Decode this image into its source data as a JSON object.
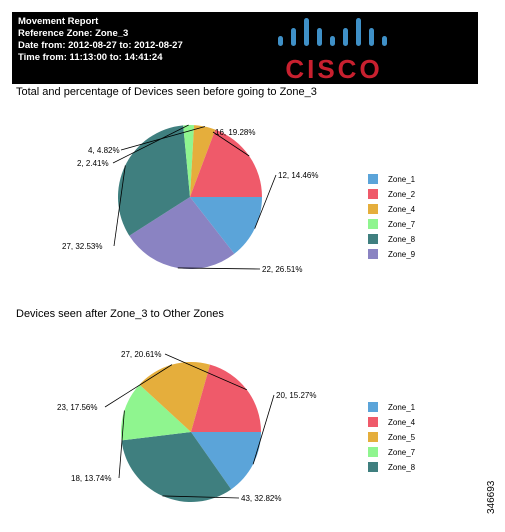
{
  "header": {
    "lines": [
      "Movement Report",
      "Reference Zone: Zone_3",
      "Date from: 2012-08-27 to: 2012-08-27",
      "Time from: 11:13:00 to: 14:41:24"
    ],
    "logo_text": "CISCO",
    "logo_color": "#c8202f"
  },
  "side_id": "346693",
  "chart_data": [
    {
      "type": "pie",
      "title": "Total and percentage of Devices seen before going to Zone_3",
      "legend_position": "right",
      "slices": [
        {
          "name": "Zone_1",
          "value": 12,
          "percent": 14.46,
          "label": "12, 14.46%",
          "color": "#5ba4d9"
        },
        {
          "name": "Zone_9",
          "value": 22,
          "percent": 26.51,
          "label": "22, 26.51%",
          "color": "#8a83c2"
        },
        {
          "name": "Zone_8",
          "value": 27,
          "percent": 32.53,
          "label": "27, 32.53%",
          "color": "#3f7f7f"
        },
        {
          "name": "Zone_7",
          "value": 2,
          "percent": 2.41,
          "label": "2, 2.41%",
          "color": "#8ff58f"
        },
        {
          "name": "Zone_4",
          "value": 4,
          "percent": 4.82,
          "label": "4, 4.82%",
          "color": "#e5ae3c"
        },
        {
          "name": "Zone_2",
          "value": 16,
          "percent": 19.28,
          "label": "16, 19.28%",
          "color": "#ef5a6a"
        }
      ],
      "legend": [
        {
          "name": "Zone_1",
          "color": "#5ba4d9"
        },
        {
          "name": "Zone_2",
          "color": "#ef5a6a"
        },
        {
          "name": "Zone_4",
          "color": "#e5ae3c"
        },
        {
          "name": "Zone_7",
          "color": "#8ff58f"
        },
        {
          "name": "Zone_8",
          "color": "#3f7f7f"
        },
        {
          "name": "Zone_9",
          "color": "#8a83c2"
        }
      ]
    },
    {
      "type": "pie",
      "title": "Devices seen after Zone_3 to Other Zones",
      "legend_position": "right",
      "slices": [
        {
          "name": "Zone_1",
          "value": 20,
          "percent": 15.27,
          "label": "20, 15.27%",
          "color": "#5ba4d9"
        },
        {
          "name": "Zone_8",
          "value": 43,
          "percent": 32.82,
          "label": "43, 32.82%",
          "color": "#3f7f7f"
        },
        {
          "name": "Zone_7",
          "value": 18,
          "percent": 13.74,
          "label": "18, 13.74%",
          "color": "#8ff58f"
        },
        {
          "name": "Zone_5",
          "value": 23,
          "percent": 17.56,
          "label": "23, 17.56%",
          "color": "#e5ae3c"
        },
        {
          "name": "Zone_4",
          "value": 27,
          "percent": 20.61,
          "label": "27, 20.61%",
          "color": "#ef5a6a"
        }
      ],
      "legend": [
        {
          "name": "Zone_1",
          "color": "#5ba4d9"
        },
        {
          "name": "Zone_4",
          "color": "#ef5a6a"
        },
        {
          "name": "Zone_5",
          "color": "#e5ae3c"
        },
        {
          "name": "Zone_7",
          "color": "#8ff58f"
        },
        {
          "name": "Zone_8",
          "color": "#3f7f7f"
        }
      ]
    }
  ]
}
